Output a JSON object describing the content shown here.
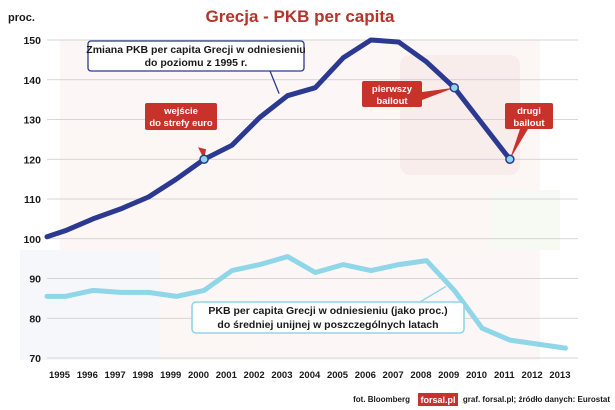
{
  "chart_data": {
    "type": "line",
    "title": "Grecja - PKB per capita",
    "ylabel": "proc.",
    "xlabel": "",
    "ylim": [
      70,
      150
    ],
    "yticks": [
      70,
      80,
      90,
      100,
      110,
      120,
      130,
      140,
      150
    ],
    "x": [
      1995,
      1996,
      1997,
      1998,
      1999,
      2000,
      2001,
      2002,
      2003,
      2004,
      2005,
      2006,
      2007,
      2008,
      2009,
      2010,
      2011,
      2012,
      2013
    ],
    "grid": true,
    "series": [
      {
        "key": "rel1995",
        "color": "#2b3990",
        "x": [
          1994.85,
          1995.5,
          1996.5,
          1997.5,
          1998.5,
          1999.5,
          2000.5,
          2001.5,
          2002.5,
          2003.5,
          2004.5,
          2005.5,
          2006.5,
          2007.5,
          2008.5,
          2009.5,
          2010.5,
          2011.5
        ],
        "values": [
          100.5,
          102,
          105,
          107.5,
          110.5,
          115,
          120,
          123.5,
          130.5,
          136,
          138,
          145.5,
          150,
          149.5,
          144.5,
          138,
          129,
          120
        ]
      },
      {
        "key": "relEU",
        "color": "#8fd6e8",
        "x": [
          1994.85,
          1995.5,
          1996.5,
          1997.5,
          1998.5,
          1999.5,
          2000.5,
          2001.5,
          2002.5,
          2003.5,
          2004.5,
          2005.5,
          2006.5,
          2007.5,
          2008.5,
          2009.5,
          2010.5,
          2011.5,
          2012.5,
          2013.5
        ],
        "values": [
          85.5,
          85.5,
          87,
          86.5,
          86.5,
          85.5,
          87,
          92,
          93.5,
          95.5,
          91.5,
          93.5,
          92,
          93.5,
          94.5,
          87,
          77.5,
          74.5,
          73.5,
          72.5
        ]
      }
    ],
    "annotations": [
      {
        "key": "main_box",
        "lines": [
          "Zmiana PKB per capita Grecji w odniesieniu",
          "do poziomu z 1995 r."
        ]
      },
      {
        "key": "euro_entry",
        "lines": [
          "wejście",
          "do strefy euro"
        ],
        "x": 2000.5,
        "y": 120
      },
      {
        "key": "bailout1",
        "lines": [
          "pierwszy",
          "bailout"
        ],
        "x": 2009.5,
        "y": 138
      },
      {
        "key": "bailout2",
        "lines": [
          "drugi",
          "bailout"
        ],
        "x": 2011.5,
        "y": 120
      },
      {
        "key": "eu_box",
        "lines": [
          "PKB per capita Grecji w odniesieniu (jako proc.)",
          "do średniej unijnej w poszczególnych latach"
        ]
      }
    ]
  },
  "footer": {
    "photo_credit": "fot. Bloomberg",
    "logo_text": "forsal.pl",
    "source": "graf. forsal.pl; źródło danych: Eurostat"
  }
}
